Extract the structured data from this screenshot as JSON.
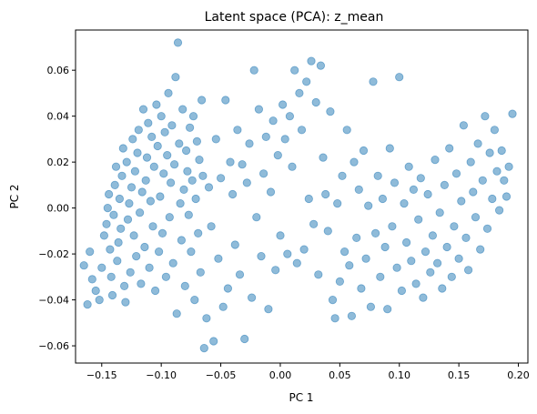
{
  "chart_data": {
    "type": "scatter",
    "title": "Latent space (PCA): z_mean",
    "xlabel": "PC 1",
    "ylabel": "PC 2",
    "xlim": [
      -0.172,
      0.208
    ],
    "ylim": [
      -0.0675,
      0.0775
    ],
    "xticks": [
      -0.15,
      -0.1,
      -0.05,
      0.0,
      0.05,
      0.1,
      0.15,
      0.2
    ],
    "xtick_labels": [
      "−0.15",
      "−0.10",
      "−0.05",
      "0.00",
      "0.05",
      "0.10",
      "0.15",
      "0.20"
    ],
    "yticks": [
      -0.06,
      -0.04,
      -0.02,
      0.0,
      0.02,
      0.04,
      0.06
    ],
    "ytick_labels": [
      "−0.06",
      "−0.04",
      "−0.02",
      "0.00",
      "0.02",
      "0.04",
      "0.06"
    ],
    "grid": false,
    "marker_color": "#1f77b4",
    "marker_alpha": 0.5,
    "series": [
      {
        "points": [
          [
            -0.162,
            -0.042
          ],
          [
            -0.165,
            -0.025
          ],
          [
            -0.16,
            -0.019
          ],
          [
            -0.158,
            -0.031
          ],
          [
            -0.155,
            -0.036
          ],
          [
            -0.152,
            -0.04
          ],
          [
            -0.15,
            -0.026
          ],
          [
            -0.148,
            -0.012
          ],
          [
            -0.146,
            -0.007
          ],
          [
            -0.145,
            0.0
          ],
          [
            -0.144,
            0.006
          ],
          [
            -0.143,
            -0.018
          ],
          [
            -0.142,
            -0.03
          ],
          [
            -0.141,
            -0.038
          ],
          [
            -0.14,
            -0.003
          ],
          [
            -0.139,
            0.01
          ],
          [
            -0.138,
            0.018
          ],
          [
            -0.137,
            -0.023
          ],
          [
            -0.136,
            -0.015
          ],
          [
            -0.135,
            0.004
          ],
          [
            -0.134,
            -0.009
          ],
          [
            -0.133,
            0.014
          ],
          [
            -0.132,
            0.026
          ],
          [
            -0.131,
            -0.034
          ],
          [
            -0.13,
            -0.041
          ],
          [
            -0.129,
            0.02
          ],
          [
            -0.128,
            -0.005
          ],
          [
            -0.127,
            0.002
          ],
          [
            -0.126,
            -0.028
          ],
          [
            -0.125,
            0.009
          ],
          [
            -0.124,
            0.03
          ],
          [
            -0.123,
            -0.012
          ],
          [
            -0.122,
            0.016
          ],
          [
            -0.121,
            -0.021
          ],
          [
            -0.12,
            0.024
          ],
          [
            -0.119,
            0.034
          ],
          [
            -0.118,
            -0.002
          ],
          [
            -0.117,
            -0.033
          ],
          [
            -0.116,
            0.007
          ],
          [
            -0.115,
            0.043
          ],
          [
            -0.114,
            -0.017
          ],
          [
            -0.113,
            0.012
          ],
          [
            -0.112,
            0.022
          ],
          [
            -0.111,
            0.037
          ],
          [
            -0.11,
            -0.026
          ],
          [
            -0.109,
            0.003
          ],
          [
            -0.108,
            0.031
          ],
          [
            -0.107,
            -0.008
          ],
          [
            -0.106,
            0.018
          ],
          [
            -0.105,
            -0.036
          ],
          [
            -0.104,
            0.045
          ],
          [
            -0.103,
            0.027
          ],
          [
            -0.102,
            -0.019
          ],
          [
            -0.101,
            0.005
          ],
          [
            -0.1,
            0.04
          ],
          [
            -0.099,
            -0.011
          ],
          [
            -0.098,
            0.015
          ],
          [
            -0.097,
            0.033
          ],
          [
            -0.096,
            -0.03
          ],
          [
            -0.095,
            0.023
          ],
          [
            -0.094,
            0.05
          ],
          [
            -0.093,
            -0.004
          ],
          [
            -0.092,
            0.011
          ],
          [
            -0.091,
            0.036
          ],
          [
            -0.09,
            -0.024
          ],
          [
            -0.089,
            0.019
          ],
          [
            -0.088,
            0.057
          ],
          [
            -0.087,
            -0.046
          ],
          [
            -0.086,
            0.072
          ],
          [
            -0.085,
            0.028
          ],
          [
            -0.084,
            0.002
          ],
          [
            -0.083,
            -0.014
          ],
          [
            -0.082,
            0.043
          ],
          [
            -0.081,
            0.008
          ],
          [
            -0.08,
            -0.034
          ],
          [
            -0.079,
            0.025
          ],
          [
            -0.078,
            0.016
          ],
          [
            -0.077,
            -0.003
          ],
          [
            -0.076,
            0.035
          ],
          [
            -0.075,
            -0.019
          ],
          [
            -0.074,
            0.012
          ],
          [
            -0.073,
            0.04
          ],
          [
            -0.072,
            -0.04
          ],
          [
            -0.071,
            0.004
          ],
          [
            -0.07,
            0.029
          ],
          [
            -0.069,
            -0.011
          ],
          [
            -0.068,
            0.021
          ],
          [
            -0.067,
            -0.028
          ],
          [
            -0.066,
            0.047
          ],
          [
            -0.065,
            0.014
          ],
          [
            -0.064,
            -0.061
          ],
          [
            -0.062,
            -0.048
          ],
          [
            -0.06,
            0.009
          ],
          [
            -0.058,
            -0.008
          ],
          [
            -0.056,
            -0.058
          ],
          [
            -0.054,
            0.03
          ],
          [
            -0.052,
            -0.022
          ],
          [
            -0.05,
            0.013
          ],
          [
            -0.048,
            -0.043
          ],
          [
            -0.046,
            0.047
          ],
          [
            -0.044,
            -0.035
          ],
          [
            -0.042,
            0.02
          ],
          [
            -0.04,
            0.006
          ],
          [
            -0.038,
            -0.016
          ],
          [
            -0.036,
            0.034
          ],
          [
            -0.034,
            -0.029
          ],
          [
            -0.032,
            0.019
          ],
          [
            -0.03,
            -0.057
          ],
          [
            -0.028,
            0.011
          ],
          [
            -0.026,
            0.028
          ],
          [
            -0.024,
            -0.039
          ],
          [
            -0.022,
            0.06
          ],
          [
            -0.02,
            -0.004
          ],
          [
            -0.018,
            0.043
          ],
          [
            -0.016,
            -0.021
          ],
          [
            -0.014,
            0.015
          ],
          [
            -0.012,
            0.031
          ],
          [
            -0.01,
            -0.044
          ],
          [
            -0.008,
            0.007
          ],
          [
            -0.006,
            0.038
          ],
          [
            -0.004,
            -0.027
          ],
          [
            -0.002,
            0.023
          ],
          [
            0.0,
            -0.012
          ],
          [
            0.002,
            0.045
          ],
          [
            0.004,
            0.03
          ],
          [
            0.006,
            -0.02
          ],
          [
            0.008,
            0.04
          ],
          [
            0.01,
            0.018
          ],
          [
            0.012,
            0.06
          ],
          [
            0.014,
            -0.024
          ],
          [
            0.016,
            0.05
          ],
          [
            0.018,
            0.034
          ],
          [
            0.02,
            -0.018
          ],
          [
            0.022,
            0.055
          ],
          [
            0.024,
            0.004
          ],
          [
            0.026,
            0.064
          ],
          [
            0.028,
            -0.007
          ],
          [
            0.03,
            0.046
          ],
          [
            0.032,
            -0.029
          ],
          [
            0.034,
            0.062
          ],
          [
            0.036,
            0.022
          ],
          [
            0.038,
            0.006
          ],
          [
            0.04,
            -0.01
          ],
          [
            0.042,
            0.042
          ],
          [
            0.044,
            -0.04
          ],
          [
            0.046,
            -0.048
          ],
          [
            0.048,
            0.002
          ],
          [
            0.05,
            -0.032
          ],
          [
            0.052,
            0.014
          ],
          [
            0.054,
            -0.019
          ],
          [
            0.056,
            0.034
          ],
          [
            0.058,
            -0.025
          ],
          [
            0.06,
            -0.047
          ],
          [
            0.062,
            0.02
          ],
          [
            0.064,
            -0.013
          ],
          [
            0.066,
            0.008
          ],
          [
            0.068,
            -0.035
          ],
          [
            0.07,
            0.025
          ],
          [
            0.072,
            -0.022
          ],
          [
            0.074,
            0.001
          ],
          [
            0.076,
            -0.043
          ],
          [
            0.078,
            0.055
          ],
          [
            0.08,
            -0.011
          ],
          [
            0.082,
            0.014
          ],
          [
            0.084,
            -0.03
          ],
          [
            0.086,
            0.004
          ],
          [
            0.088,
            -0.017
          ],
          [
            0.09,
            -0.044
          ],
          [
            0.092,
            0.026
          ],
          [
            0.094,
            -0.008
          ],
          [
            0.096,
            0.011
          ],
          [
            0.098,
            -0.026
          ],
          [
            0.1,
            0.057
          ],
          [
            0.102,
            -0.036
          ],
          [
            0.104,
            0.002
          ],
          [
            0.106,
            -0.015
          ],
          [
            0.108,
            0.018
          ],
          [
            0.11,
            -0.023
          ],
          [
            0.112,
            0.008
          ],
          [
            0.114,
            -0.033
          ],
          [
            0.116,
            -0.005
          ],
          [
            0.118,
            0.013
          ],
          [
            0.12,
            -0.039
          ],
          [
            0.122,
            -0.019
          ],
          [
            0.124,
            0.006
          ],
          [
            0.126,
            -0.028
          ],
          [
            0.128,
            -0.012
          ],
          [
            0.13,
            0.021
          ],
          [
            0.132,
            -0.024
          ],
          [
            0.134,
            -0.002
          ],
          [
            0.136,
            -0.035
          ],
          [
            0.138,
            0.01
          ],
          [
            0.14,
            -0.017
          ],
          [
            0.142,
            0.026
          ],
          [
            0.144,
            -0.03
          ],
          [
            0.146,
            -0.008
          ],
          [
            0.148,
            0.015
          ],
          [
            0.15,
            -0.022
          ],
          [
            0.152,
            0.003
          ],
          [
            0.154,
            0.036
          ],
          [
            0.156,
            -0.013
          ],
          [
            0.158,
            -0.027
          ],
          [
            0.16,
            0.02
          ],
          [
            0.162,
            0.007
          ],
          [
            0.164,
            -0.004
          ],
          [
            0.166,
            0.028
          ],
          [
            0.168,
            -0.018
          ],
          [
            0.17,
            0.012
          ],
          [
            0.172,
            0.04
          ],
          [
            0.174,
            -0.009
          ],
          [
            0.176,
            0.024
          ],
          [
            0.178,
            0.004
          ],
          [
            0.18,
            0.034
          ],
          [
            0.182,
            0.016
          ],
          [
            0.184,
            -0.001
          ],
          [
            0.186,
            0.025
          ],
          [
            0.188,
            0.012
          ],
          [
            0.19,
            0.005
          ],
          [
            0.192,
            0.018
          ],
          [
            0.195,
            0.041
          ]
        ]
      }
    ]
  }
}
